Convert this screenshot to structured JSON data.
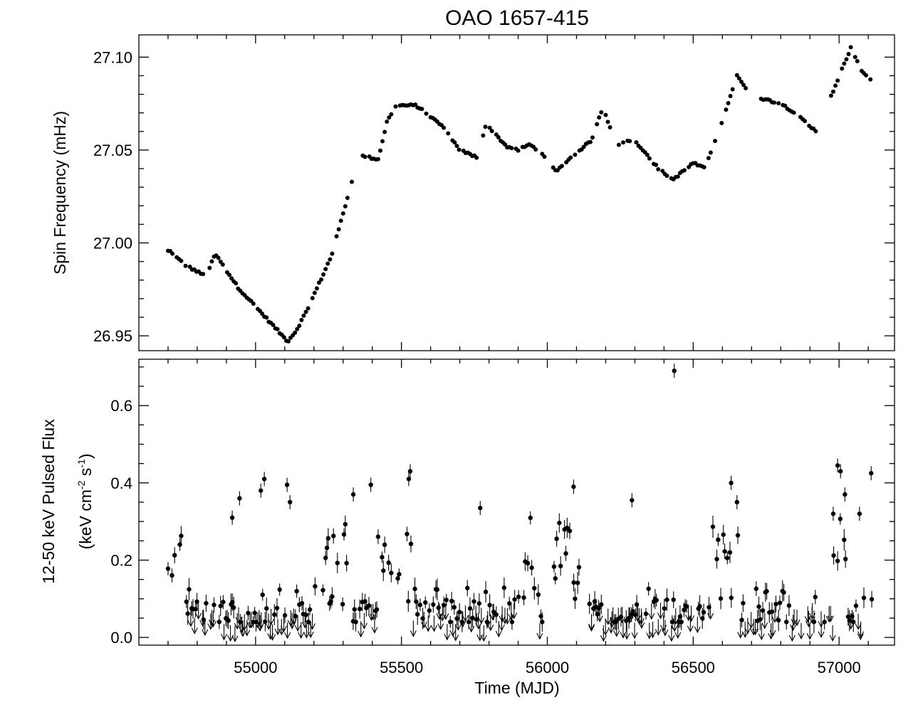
{
  "title": "OAO 1657-415",
  "chart_data": [
    {
      "id": "spin",
      "type": "scatter",
      "ylabel": "Spin Frequency (mHz)",
      "xlim": [
        54600,
        57190
      ],
      "ylim": [
        26.942,
        27.112
      ],
      "yticks_major": [
        "26.95",
        "27.00",
        "27.05",
        "27.10"
      ],
      "ytick_minor_step": 0.01,
      "anchors": [
        [
          54700,
          26.996
        ],
        [
          54760,
          26.988
        ],
        [
          54830,
          26.982
        ],
        [
          54862,
          26.994
        ],
        [
          54940,
          26.976
        ],
        [
          55110,
          26.947
        ],
        [
          55140,
          26.953
        ],
        [
          55180,
          26.965
        ],
        [
          55260,
          26.993
        ],
        [
          55330,
          27.033
        ],
        [
          55360,
          27.047
        ],
        [
          55420,
          27.045
        ],
        [
          55450,
          27.065
        ],
        [
          55480,
          27.074
        ],
        [
          55550,
          27.074
        ],
        [
          55640,
          27.063
        ],
        [
          55700,
          27.05
        ],
        [
          55760,
          27.046
        ],
        [
          55790,
          27.064
        ],
        [
          55860,
          27.052
        ],
        [
          55900,
          27.05
        ],
        [
          55940,
          27.053
        ],
        [
          55990,
          27.047
        ],
        [
          56030,
          27.038
        ],
        [
          56080,
          27.046
        ],
        [
          56150,
          27.055
        ],
        [
          56190,
          27.073
        ],
        [
          56240,
          27.052
        ],
        [
          56290,
          27.056
        ],
        [
          56330,
          27.05
        ],
        [
          56380,
          27.04
        ],
        [
          56430,
          27.034
        ],
        [
          56500,
          27.043
        ],
        [
          56540,
          27.04
        ],
        [
          56600,
          27.066
        ],
        [
          56650,
          27.09
        ],
        [
          56680,
          27.083
        ],
        [
          56730,
          27.078
        ],
        [
          56800,
          27.075
        ],
        [
          56840,
          27.071
        ],
        [
          56920,
          27.06
        ],
        [
          56980,
          27.082
        ],
        [
          57040,
          27.105
        ],
        [
          57080,
          27.092
        ],
        [
          57110,
          27.087
        ]
      ],
      "gaps": [
        [
          56000,
          56020
        ],
        [
          56680,
          56720
        ],
        [
          56930,
          56970
        ]
      ]
    },
    {
      "id": "flux",
      "type": "scatter",
      "xlabel": "Time (MJD)",
      "ylabel_line1": "12-50 keV Pulsed Flux",
      "ylabel_line2": "(keV cm-2 s-1)",
      "ylabel_unit_base": "(keV cm",
      "ylabel_exp1": "-2",
      "ylabel_unit_mid": " s",
      "ylabel_exp2": "-1",
      "ylabel_unit_end": ")",
      "xlim": [
        54600,
        57190
      ],
      "ylim": [
        -0.02,
        0.72
      ],
      "xticks_major": [
        "55000",
        "55500",
        "56000",
        "56500",
        "57000"
      ],
      "yticks_major": [
        "0.0",
        "0.2",
        "0.4",
        "0.6"
      ],
      "highlights": [
        [
          55030,
          0.41
        ],
        [
          55018,
          0.38
        ],
        [
          55108,
          0.395
        ],
        [
          55118,
          0.35
        ],
        [
          54945,
          0.36
        ],
        [
          54920,
          0.31
        ],
        [
          55335,
          0.37
        ],
        [
          55395,
          0.395
        ],
        [
          55530,
          0.43
        ],
        [
          55525,
          0.41
        ],
        [
          55770,
          0.335
        ],
        [
          56090,
          0.39
        ],
        [
          56290,
          0.355
        ],
        [
          56435,
          0.69
        ],
        [
          56630,
          0.4
        ],
        [
          56650,
          0.35
        ],
        [
          56995,
          0.445
        ],
        [
          57005,
          0.43
        ],
        [
          57020,
          0.37
        ],
        [
          57110,
          0.425
        ],
        [
          56980,
          0.32
        ],
        [
          57070,
          0.32
        ]
      ],
      "active_windows": [
        [
          54700,
          54760,
          0.24
        ],
        [
          55200,
          55330,
          0.22
        ],
        [
          55420,
          55540,
          0.22
        ],
        [
          55890,
          55960,
          0.23
        ],
        [
          56020,
          56140,
          0.27
        ],
        [
          56560,
          56660,
          0.26
        ],
        [
          56980,
          57030,
          0.28
        ],
        [
          57080,
          57115,
          0.23
        ]
      ]
    }
  ]
}
